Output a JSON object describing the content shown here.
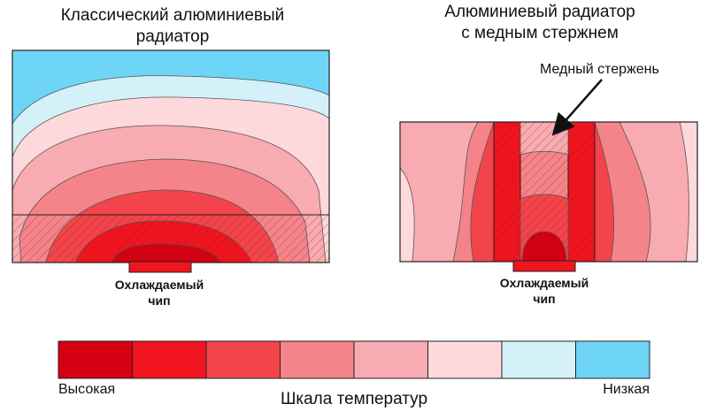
{
  "left_diagram": {
    "title_line1": "Классический алюминиевый",
    "title_line2": "радиатор",
    "chip_line1": "Охлаждаемый",
    "chip_line2": "чип"
  },
  "right_diagram": {
    "title_line1": "Алюминиевый радиатор",
    "title_line2": "с медным стержнем",
    "copper_label": "Медный стержень",
    "chip_line1": "Охлаждаемый",
    "chip_line2": "чип"
  },
  "temperature_scale": {
    "title": "Шкала температур",
    "high_label": "Высокая",
    "low_label": "Низкая",
    "colors": [
      "#d40012",
      "#f0141e",
      "#f3444b",
      "#f48489",
      "#f8abb0",
      "#fdd9db",
      "#d4f1f9",
      "#6fd5f6"
    ]
  }
}
